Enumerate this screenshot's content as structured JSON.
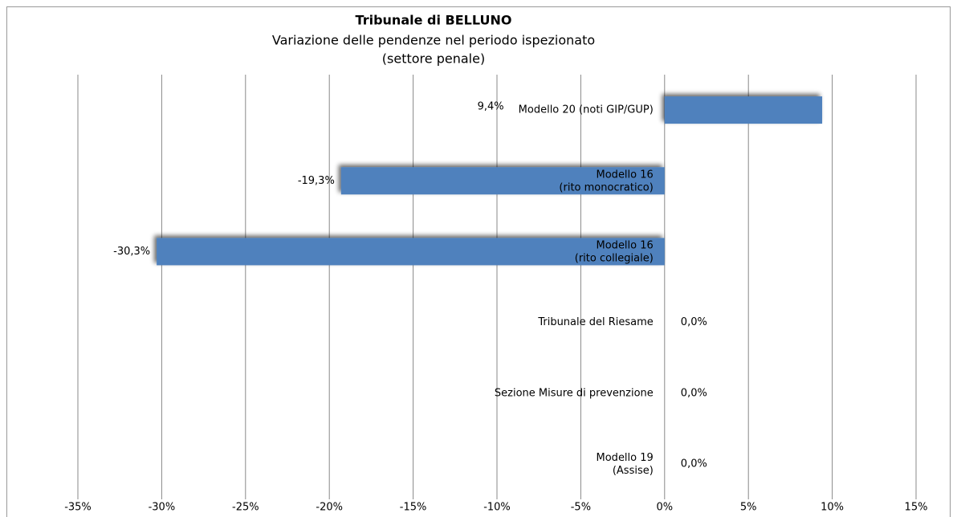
{
  "chart_data": {
    "type": "barh",
    "title": "Tribunale di BELLUNO",
    "subtitle": [
      "Variazione delle pendenze nel periodo ispezionato",
      "(settore penale)"
    ],
    "categories": [
      "Modello 20 (noti GIP/GUP)",
      "Modello 16\n(rito monocratico)",
      "Modello 16\n(rito collegiale)",
      "Tribunale del Riesame",
      "Sezione Misure di prevenzione",
      "Modello 19\n(Assise)"
    ],
    "values": [
      9.4,
      -19.3,
      -30.3,
      0,
      0,
      0
    ],
    "value_labels": [
      "9,4%",
      "-19,3%",
      "-30,3%",
      "0,0%",
      "0,0%",
      "0,0%"
    ],
    "color": "#4f81bd",
    "xlim": [
      -35,
      15
    ],
    "xticks": [
      {
        "value": -35,
        "label": "-35%"
      },
      {
        "value": -30,
        "label": "-30%"
      },
      {
        "value": -25,
        "label": "-25%"
      },
      {
        "value": -20,
        "label": "-20%"
      },
      {
        "value": -15,
        "label": "-15%"
      },
      {
        "value": -10,
        "label": "-10%"
      },
      {
        "value": -5,
        "label": "-5%"
      },
      {
        "value": 0,
        "label": "0%"
      },
      {
        "value": 5,
        "label": "5%"
      },
      {
        "value": 10,
        "label": "10%"
      },
      {
        "value": 15,
        "label": "15%"
      }
    ],
    "grid": true
  }
}
